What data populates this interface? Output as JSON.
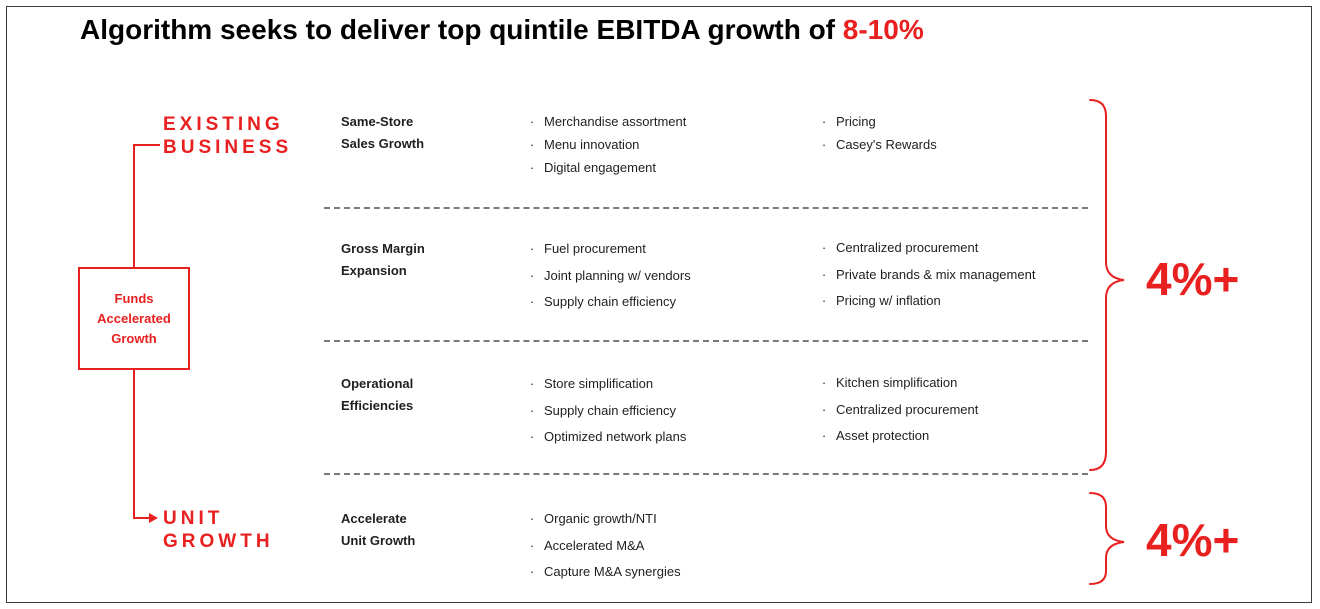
{
  "title": {
    "main": "Algorithm seeks to deliver top quintile EBITDA growth of ",
    "accent": "8-10%"
  },
  "labels": {
    "existing_line1": "EXISTING",
    "existing_line2": "BUSINESS",
    "unit_line1": "UNIT",
    "unit_line2": "GROWTH",
    "funds_line1": "Funds",
    "funds_line2": "Accelerated",
    "funds_line3": "Growth"
  },
  "rows": [
    {
      "title_line1": "Same-Store",
      "title_line2": "Sales Growth",
      "left": [
        "Merchandise assortment",
        "Menu innovation",
        "Digital engagement"
      ],
      "right": [
        "Pricing",
        "Casey's Rewards"
      ]
    },
    {
      "title_line1": "Gross Margin",
      "title_line2": "Expansion",
      "left": [
        "Fuel procurement",
        "Joint planning w/ vendors",
        "Supply chain efficiency"
      ],
      "right": [
        "Centralized procurement",
        "Private brands & mix management",
        "Pricing w/ inflation"
      ]
    },
    {
      "title_line1": "Operational",
      "title_line2": "Efficiencies",
      "left": [
        "Store simplification",
        "Supply chain efficiency",
        "Optimized network plans"
      ],
      "right": [
        "Kitchen simplification",
        "Centralized procurement",
        "Asset protection"
      ]
    },
    {
      "title_line1": "Accelerate",
      "title_line2": "Unit Growth",
      "left": [
        "Organic growth/NTI",
        "Accelerated M&A",
        "Capture M&A synergies"
      ],
      "right": []
    }
  ],
  "bullet_symbol": "·",
  "growth": {
    "existing_pct": "4%+",
    "unit_pct": "4%+"
  },
  "colors": {
    "accent": "#e8201f",
    "text": "#1f1f1f",
    "divider": "#7a7a7a"
  }
}
